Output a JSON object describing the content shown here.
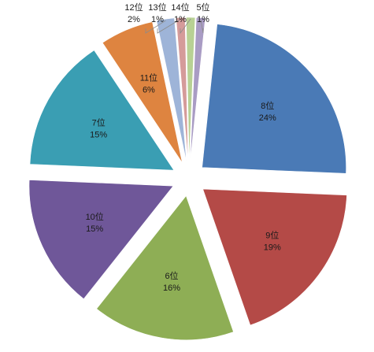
{
  "chart_data": {
    "type": "pie",
    "title": "",
    "slices": [
      {
        "label": "8位",
        "value": 24,
        "percent_label": "24%",
        "color": "#4a7ab6"
      },
      {
        "label": "9位",
        "value": 19,
        "percent_label": "19%",
        "color": "#b44a47"
      },
      {
        "label": "6位",
        "value": 16,
        "percent_label": "16%",
        "color": "#8eae55"
      },
      {
        "label": "10位",
        "value": 15,
        "percent_label": "15%",
        "color": "#6f5799"
      },
      {
        "label": "7位",
        "value": 15,
        "percent_label": "15%",
        "color": "#3a9eb3"
      },
      {
        "label": "11位",
        "value": 6,
        "percent_label": "6%",
        "color": "#de8440"
      },
      {
        "label": "12位",
        "value": 2,
        "percent_label": "2%",
        "color": "#9eb4d8"
      },
      {
        "label": "13位",
        "value": 1,
        "percent_label": "1%",
        "color": "#d59b9a"
      },
      {
        "label": "14位",
        "value": 1,
        "percent_label": "1%",
        "color": "#b8d194"
      },
      {
        "label": "5位",
        "value": 1,
        "percent_label": "1%",
        "color": "#a99cc4"
      }
    ],
    "legend": "none",
    "exploded": true
  }
}
